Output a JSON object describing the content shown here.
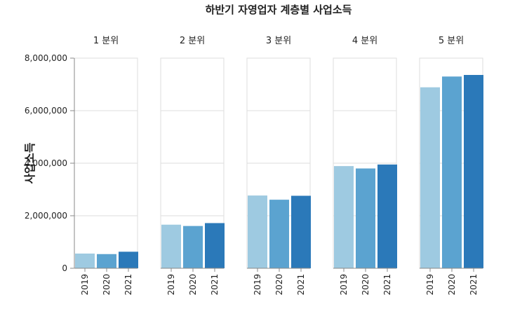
{
  "chart_data": {
    "type": "bar",
    "title": "하반기 자영업자 계층별 사업소득",
    "ylabel": "사업소득",
    "xlabel": "",
    "ylim": [
      0,
      8000000
    ],
    "yticks": [
      0,
      2000000,
      4000000,
      6000000,
      8000000
    ],
    "ytick_labels": [
      "0",
      "2,000,000",
      "4,000,000",
      "6,000,000",
      "8,000,000"
    ],
    "categories": [
      "2019",
      "2020",
      "2021"
    ],
    "colors": [
      "#9ecae1",
      "#5ba3d0",
      "#2b79b9"
    ],
    "grid": true,
    "facets": [
      {
        "label": "1 분위",
        "values": [
          560000,
          540000,
          630000
        ]
      },
      {
        "label": "2 분위",
        "values": [
          1660000,
          1610000,
          1720000
        ]
      },
      {
        "label": "3 분위",
        "values": [
          2770000,
          2610000,
          2760000
        ]
      },
      {
        "label": "4 분위",
        "values": [
          3890000,
          3800000,
          3950000
        ]
      },
      {
        "label": "5 분위",
        "values": [
          6890000,
          7300000,
          7360000
        ]
      }
    ]
  }
}
